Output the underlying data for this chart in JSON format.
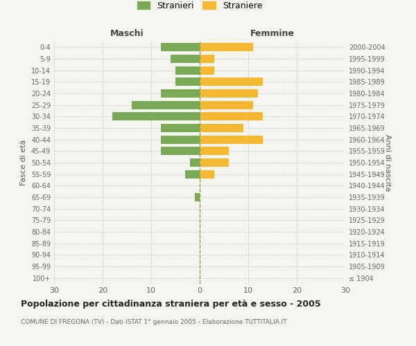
{
  "age_groups": [
    "100+",
    "95-99",
    "90-94",
    "85-89",
    "80-84",
    "75-79",
    "70-74",
    "65-69",
    "60-64",
    "55-59",
    "50-54",
    "45-49",
    "40-44",
    "35-39",
    "30-34",
    "25-29",
    "20-24",
    "15-19",
    "10-14",
    "5-9",
    "0-4"
  ],
  "birth_years": [
    "≤ 1904",
    "1905-1909",
    "1910-1914",
    "1915-1919",
    "1920-1924",
    "1925-1929",
    "1930-1934",
    "1935-1939",
    "1940-1944",
    "1945-1949",
    "1950-1954",
    "1955-1959",
    "1960-1964",
    "1965-1969",
    "1970-1974",
    "1975-1979",
    "1980-1984",
    "1985-1989",
    "1990-1994",
    "1995-1999",
    "2000-2004"
  ],
  "maschi": [
    0,
    0,
    0,
    0,
    0,
    0,
    0,
    1,
    0,
    3,
    2,
    8,
    8,
    8,
    18,
    14,
    8,
    5,
    5,
    6,
    8
  ],
  "femmine": [
    0,
    0,
    0,
    0,
    0,
    0,
    0,
    0,
    0,
    3,
    6,
    6,
    13,
    9,
    13,
    11,
    12,
    13,
    3,
    3,
    11
  ],
  "maschi_color": "#7aaa58",
  "femmine_color": "#f5b832",
  "center_line_color": "#999944",
  "background_color": "#f5f5f0",
  "title": "Popolazione per cittadinanza straniera per età e sesso - 2005",
  "subtitle": "COMUNE DI FREGONA (TV) - Dati ISTAT 1° gennaio 2005 - Elaborazione TUTTITALIA.IT",
  "xlabel_left": "Maschi",
  "xlabel_right": "Femmine",
  "ylabel_left": "Fasce di età",
  "ylabel_right": "Anni di nascita",
  "legend_maschi": "Stranieri",
  "legend_femmine": "Straniere",
  "xlim": 30,
  "grid_color": "#cccccc"
}
